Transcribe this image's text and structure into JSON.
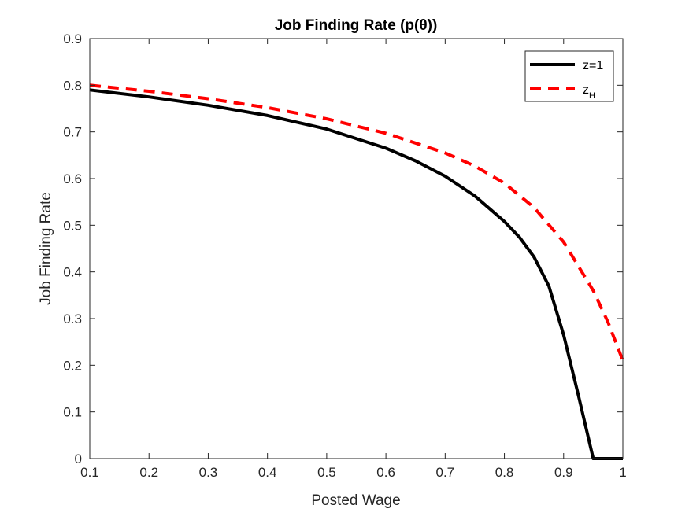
{
  "colors": {
    "background": "#ffffff",
    "axes": "#262626",
    "series_black": "#000000",
    "series_red": "#ff0000"
  },
  "chart_data": {
    "type": "line",
    "title": "Job Finding Rate (p(θ))",
    "xlabel": "Posted Wage",
    "ylabel": "Job Finding Rate",
    "xlim": [
      0.1,
      1.0
    ],
    "ylim": [
      0,
      0.9
    ],
    "xticks": [
      "0.1",
      "0.2",
      "0.3",
      "0.4",
      "0.5",
      "0.6",
      "0.7",
      "0.8",
      "0.9",
      "1"
    ],
    "yticks": [
      "0",
      "0.1",
      "0.2",
      "0.3",
      "0.4",
      "0.5",
      "0.6",
      "0.7",
      "0.8",
      "0.9"
    ],
    "grid": false,
    "legend_position": "top-right",
    "series": [
      {
        "name": "z=1",
        "legend_main": "z=1",
        "legend_sub": "",
        "color": "#000000",
        "dash": "solid",
        "x": [
          0.1,
          0.2,
          0.3,
          0.4,
          0.5,
          0.6,
          0.65,
          0.7,
          0.75,
          0.8,
          0.825,
          0.85,
          0.875,
          0.9,
          0.925,
          0.95,
          0.97,
          1.0
        ],
        "y": [
          0.79,
          0.775,
          0.757,
          0.735,
          0.706,
          0.665,
          0.638,
          0.605,
          0.563,
          0.508,
          0.475,
          0.432,
          0.37,
          0.265,
          0.135,
          0.0,
          0.0,
          0.0
        ]
      },
      {
        "name": "z_H",
        "legend_main": "z",
        "legend_sub": "H",
        "color": "#ff0000",
        "dash": "dashed",
        "x": [
          0.1,
          0.2,
          0.3,
          0.4,
          0.5,
          0.6,
          0.7,
          0.75,
          0.8,
          0.85,
          0.9,
          0.95,
          0.975,
          1.0
        ],
        "y": [
          0.8,
          0.787,
          0.771,
          0.752,
          0.728,
          0.697,
          0.655,
          0.627,
          0.59,
          0.538,
          0.464,
          0.36,
          0.292,
          0.21
        ]
      }
    ]
  }
}
